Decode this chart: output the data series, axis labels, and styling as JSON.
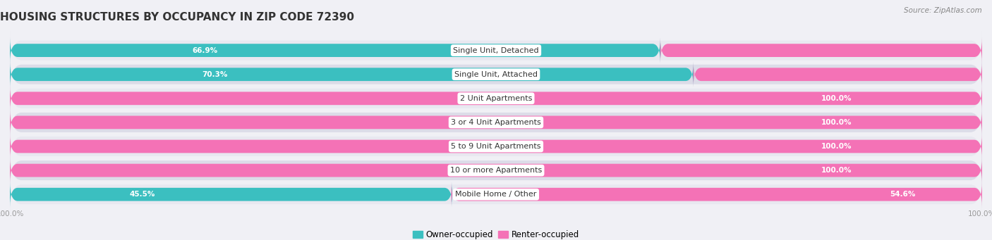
{
  "title": "HOUSING STRUCTURES BY OCCUPANCY IN ZIP CODE 72390",
  "source": "Source: ZipAtlas.com",
  "categories": [
    "Single Unit, Detached",
    "Single Unit, Attached",
    "2 Unit Apartments",
    "3 or 4 Unit Apartments",
    "5 to 9 Unit Apartments",
    "10 or more Apartments",
    "Mobile Home / Other"
  ],
  "owner_pct": [
    66.9,
    70.3,
    0.0,
    0.0,
    0.0,
    0.0,
    45.5
  ],
  "renter_pct": [
    33.1,
    29.7,
    100.0,
    100.0,
    100.0,
    100.0,
    54.6
  ],
  "owner_color": "#3bbfc0",
  "renter_color": "#f472b6",
  "renter_color_light": "#f8a8d0",
  "fig_bg": "#f0f0f5",
  "row_bg_light": "#e8e8f0",
  "row_bg_dark": "#dcdce8",
  "title_color": "#333333",
  "pct_label_color_dark": "#555555",
  "title_fontsize": 11,
  "label_fontsize": 8,
  "pct_fontsize": 7.5,
  "legend_fontsize": 8.5,
  "axis_tick_fontsize": 7.5
}
